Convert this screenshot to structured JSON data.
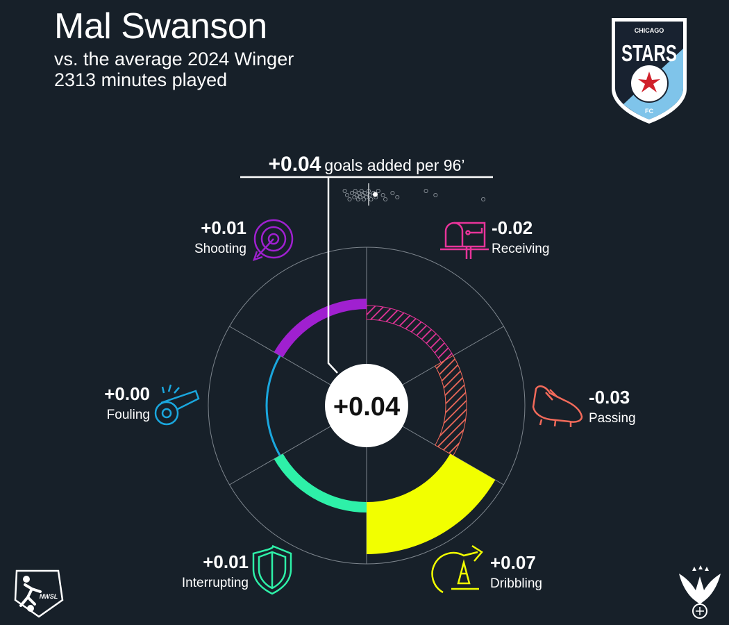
{
  "header": {
    "title": "Mal Swanson",
    "comparison": "vs. the average 2024 Winger",
    "minutes": "2313 minutes played"
  },
  "logos": {
    "club_top": "CHICAGO",
    "club_main": "STARS",
    "club_bottom": "FC",
    "league": "NWSL"
  },
  "colors": {
    "background": "#172029",
    "shooting": "#a020d0",
    "receiving": "#e8349a",
    "passing": "#f26a5a",
    "dribbling": "#f2ff00",
    "interrupting": "#2ef0a8",
    "fouling": "#1aa7de"
  },
  "chart_data": {
    "type": "radial-bar",
    "metric": "goals added per 96’",
    "total": "+0.04",
    "total_value": 0.04,
    "categories": [
      {
        "name": "Receiving",
        "value": -0.02,
        "label": "-0.02",
        "color": "#e8349a",
        "icon": "mailbox-icon"
      },
      {
        "name": "Passing",
        "value": -0.03,
        "label": "-0.03",
        "color": "#f26a5a",
        "icon": "cleat-icon"
      },
      {
        "name": "Dribbling",
        "value": 0.07,
        "label": "+0.07",
        "color": "#f2ff00",
        "icon": "cone-icon"
      },
      {
        "name": "Interrupting",
        "value": 0.01,
        "label": "+0.01",
        "color": "#2ef0a8",
        "icon": "shield-icon"
      },
      {
        "name": "Fouling",
        "value": 0.0,
        "label": "+0.00",
        "color": "#1aa7de",
        "icon": "whistle-icon"
      },
      {
        "name": "Shooting",
        "value": 0.01,
        "label": "+0.01",
        "color": "#a020d0",
        "icon": "target-icon"
      }
    ],
    "distribution": [
      -0.05,
      -0.045,
      -0.04,
      -0.035,
      -0.03,
      -0.028,
      -0.025,
      -0.022,
      -0.02,
      -0.018,
      -0.015,
      -0.012,
      -0.01,
      -0.008,
      -0.005,
      0.0,
      0.002,
      0.005,
      0.01,
      0.015,
      0.02,
      0.03,
      0.035,
      0.05,
      0.06,
      0.12,
      0.14,
      0.24
    ],
    "player_marker": 0.04,
    "scale_max": 0.07
  }
}
